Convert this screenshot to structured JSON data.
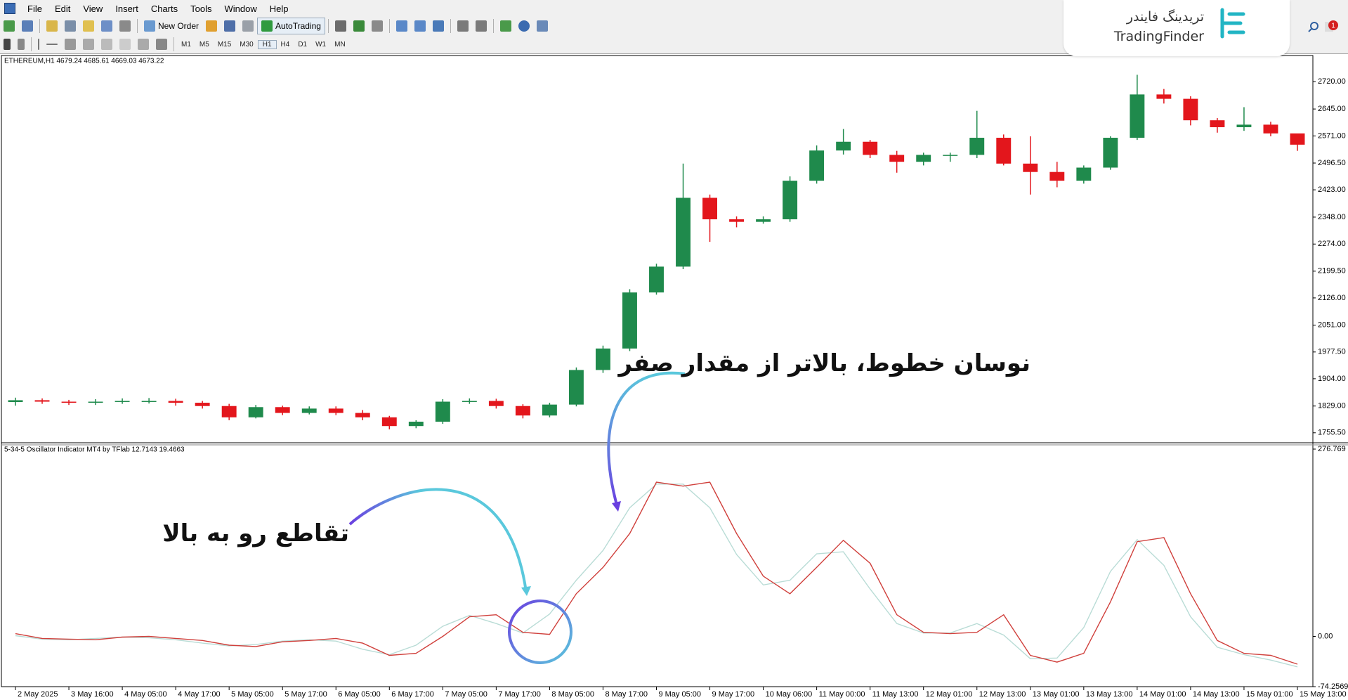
{
  "menu": [
    "File",
    "Edit",
    "View",
    "Insert",
    "Charts",
    "Tools",
    "Window",
    "Help"
  ],
  "toolbar": {
    "new_order": "New Order",
    "auto_trading": "AutoTrading",
    "timeframes": [
      "M1",
      "M5",
      "M15",
      "M30",
      "H1",
      "H4",
      "D1",
      "W1",
      "MN"
    ]
  },
  "logo": {
    "persian": "تریدینگ فایندر",
    "latin": "TradingFinder"
  },
  "badge": "1",
  "chart_data": [
    {
      "type": "candlestick",
      "title": "ETHEREUM,H1  4679.24 4685.61 4669.03 4673.22",
      "xlim": [
        -0.5,
        48.5
      ],
      "ylim": [
        1730,
        2790
      ],
      "yticks": [
        {
          "value": 2720,
          "label": "2720.00"
        },
        {
          "value": 2645,
          "label": "2645.00"
        },
        {
          "value": 2571,
          "label": "2571.00"
        },
        {
          "value": 2496.5,
          "label": "2496.50"
        },
        {
          "value": 2423,
          "label": "2423.00"
        },
        {
          "value": 2348,
          "label": "2348.00"
        },
        {
          "value": 2274,
          "label": "2274.00"
        },
        {
          "value": 2199.5,
          "label": "2199.50"
        },
        {
          "value": 2126,
          "label": "2126.00"
        },
        {
          "value": 2051,
          "label": "2051.00"
        },
        {
          "value": 1977.5,
          "label": "1977.50"
        },
        {
          "value": 1904,
          "label": "1904.00"
        },
        {
          "value": 1829,
          "label": "1829.00"
        },
        {
          "value": 1755.5,
          "label": "1755.50"
        }
      ],
      "candles": {
        "up_color": "#1f8a4c",
        "down_color": "#e3161c",
        "open": [
          1840,
          1845,
          1841,
          1838,
          1841,
          1843,
          1843,
          1838,
          1829,
          1798,
          1826,
          1810,
          1822,
          1810,
          1798,
          1774,
          1786,
          1841,
          1843,
          1829,
          1803,
          1833,
          1928,
          1987,
          2141,
          2212,
          2401,
          2342,
          2335,
          2342,
          2448,
          2531,
          2555,
          2519,
          2500,
          2519,
          2519,
          2566,
          2495,
          2472,
          2448,
          2484,
          2566,
          2685,
          2673,
          2614,
          2595,
          2602,
          2578
        ],
        "high": [
          1852,
          1850,
          1846,
          1848,
          1850,
          1851,
          1849,
          1843,
          1835,
          1832,
          1830,
          1828,
          1828,
          1818,
          1802,
          1790,
          1848,
          1850,
          1849,
          1834,
          1838,
          1935,
          1995,
          2150,
          2220,
          2495,
          2410,
          2350,
          2350,
          2460,
          2545,
          2590,
          2560,
          2530,
          2525,
          2525,
          2640,
          2575,
          2570,
          2500,
          2490,
          2570,
          2739,
          2700,
          2680,
          2620,
          2650,
          2610,
          2570
        ],
        "low": [
          1830,
          1835,
          1832,
          1832,
          1835,
          1836,
          1830,
          1822,
          1790,
          1795,
          1804,
          1806,
          1804,
          1790,
          1765,
          1768,
          1780,
          1835,
          1822,
          1795,
          1798,
          1828,
          1920,
          1980,
          2135,
          2205,
          2280,
          2320,
          2330,
          2335,
          2440,
          2520,
          2510,
          2470,
          2490,
          2500,
          2510,
          2490,
          2410,
          2430,
          2440,
          2478,
          2560,
          2660,
          2600,
          2580,
          2585,
          2570,
          2530
        ],
        "close": [
          1845,
          1841,
          1838,
          1841,
          1843,
          1843,
          1838,
          1829,
          1798,
          1826,
          1810,
          1822,
          1810,
          1798,
          1774,
          1786,
          1841,
          1843,
          1829,
          1803,
          1833,
          1928,
          1987,
          2141,
          2212,
          2401,
          2342,
          2335,
          2342,
          2448,
          2531,
          2555,
          2519,
          2500,
          2519,
          2519,
          2566,
          2495,
          2472,
          2448,
          2484,
          2566,
          2685,
          2673,
          2614,
          2595,
          2602,
          2578,
          2547
        ]
      }
    },
    {
      "type": "line",
      "title": "5-34-5 Oscillator Indicator MT4 by TFlab 12.7143 19.4663",
      "xlim": [
        -0.5,
        48.5
      ],
      "ylim": [
        -74.2569,
        276.769
      ],
      "yticks": [
        276.769,
        {
          "value": 0,
          "label": "0.00"
        },
        -74.2569
      ],
      "xticks": [
        {
          "value": 0,
          "label": "2 May 2025"
        },
        {
          "value": 2,
          "label": "3 May 16:00"
        },
        {
          "value": 4,
          "label": "4 May 05:00"
        },
        {
          "value": 6,
          "label": "4 May 17:00"
        },
        {
          "value": 8,
          "label": "5 May 05:00"
        },
        {
          "value": 10,
          "label": "5 May 17:00"
        },
        {
          "value": 12,
          "label": "6 May 05:00"
        },
        {
          "value": 14,
          "label": "6 May 17:00"
        },
        {
          "value": 16,
          "label": "7 May 05:00"
        },
        {
          "value": 18,
          "label": "7 May 17:00"
        },
        {
          "value": 20,
          "label": "8 May 05:00"
        },
        {
          "value": 22,
          "label": "8 May 17:00"
        },
        {
          "value": 24,
          "label": "9 May 05:00"
        },
        {
          "value": 26,
          "label": "9 May 17:00"
        },
        {
          "value": 28,
          "label": "10 May 06:00"
        },
        {
          "value": 30,
          "label": "11 May 00:00"
        },
        {
          "value": 32,
          "label": "11 May 13:00"
        },
        {
          "value": 34,
          "label": "12 May 01:00"
        },
        {
          "value": 36,
          "label": "12 May 13:00"
        },
        {
          "value": 38,
          "label": "13 May 01:00"
        },
        {
          "value": 40,
          "label": "13 May 13:00"
        },
        {
          "value": 42,
          "label": "14 May 01:00"
        },
        {
          "value": 44,
          "label": "14 May 13:00"
        },
        {
          "value": 46,
          "label": "15 May 01:00"
        },
        {
          "value": 48,
          "label": "15 May 13:00"
        }
      ],
      "series": [
        {
          "color": "#b9dcd6",
          "values": [
            1,
            -4,
            -5,
            -3,
            -1,
            -2,
            -5,
            -10,
            -14,
            -12,
            -7,
            -5,
            -7,
            -19,
            -27,
            -13,
            15,
            31,
            19,
            5,
            33,
            83,
            127,
            190,
            225,
            225,
            190,
            121,
            76,
            83,
            122,
            125,
            70,
            19,
            5,
            5,
            19,
            2,
            -33,
            -32,
            13,
            96,
            143,
            105,
            29,
            -16,
            -27,
            -35,
            -45
          ]
        },
        {
          "color": "#d0403c",
          "values": [
            4,
            -3,
            -4,
            -5,
            -1,
            0,
            -3,
            -6,
            -13,
            -15,
            -8,
            -6,
            -3,
            -10,
            -28,
            -25,
            0,
            29,
            32,
            6,
            3,
            63,
            102,
            152,
            228,
            222,
            228,
            152,
            89,
            63,
            102,
            142,
            108,
            32,
            6,
            4,
            6,
            32,
            -28,
            -38,
            -25,
            51,
            140,
            146,
            63,
            -6,
            -25,
            -28,
            -41
          ]
        }
      ],
      "annotations": [
        "نوسان خطوط، بالاتر از مقدار صفر",
        "تقاطع رو به بالا"
      ]
    }
  ]
}
